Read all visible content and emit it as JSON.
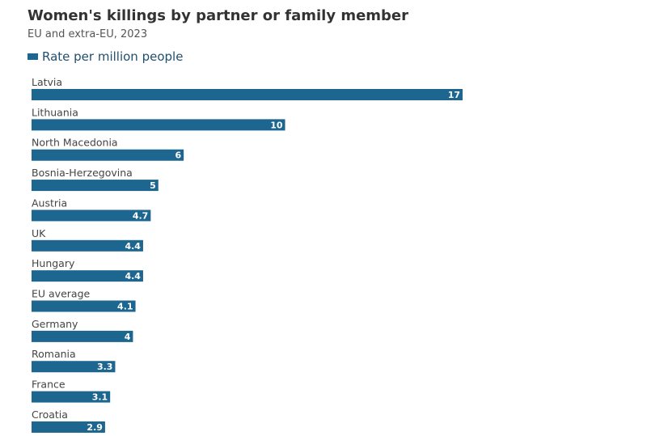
{
  "chart_data": {
    "type": "bar",
    "orientation": "horizontal",
    "title": "Women's killings by partner or family member",
    "subtitle": "EU and extra-EU, 2023",
    "legend": [
      "Rate per million people"
    ],
    "categories": [
      "Latvia",
      "Lithuania",
      "North Macedonia",
      "Bosnia-Herzegovina",
      "Austria",
      "UK",
      "Hungary",
      "EU average",
      "Germany",
      "Romania",
      "France",
      "Croatia"
    ],
    "values": [
      17,
      10,
      6,
      5,
      4.7,
      4.4,
      4.4,
      4.1,
      4,
      3.3,
      3.1,
      2.9
    ],
    "value_labels": [
      "17",
      "10",
      "6",
      "5",
      "4.7",
      "4.4",
      "4.4",
      "4.1",
      "4",
      "3.3",
      "3.1",
      "2.9"
    ],
    "xlim": [
      0,
      17
    ],
    "grid": false,
    "legend_position": "top-left"
  },
  "colors": {
    "bar": "#1c6690",
    "legend_text": "#1f4f70"
  }
}
